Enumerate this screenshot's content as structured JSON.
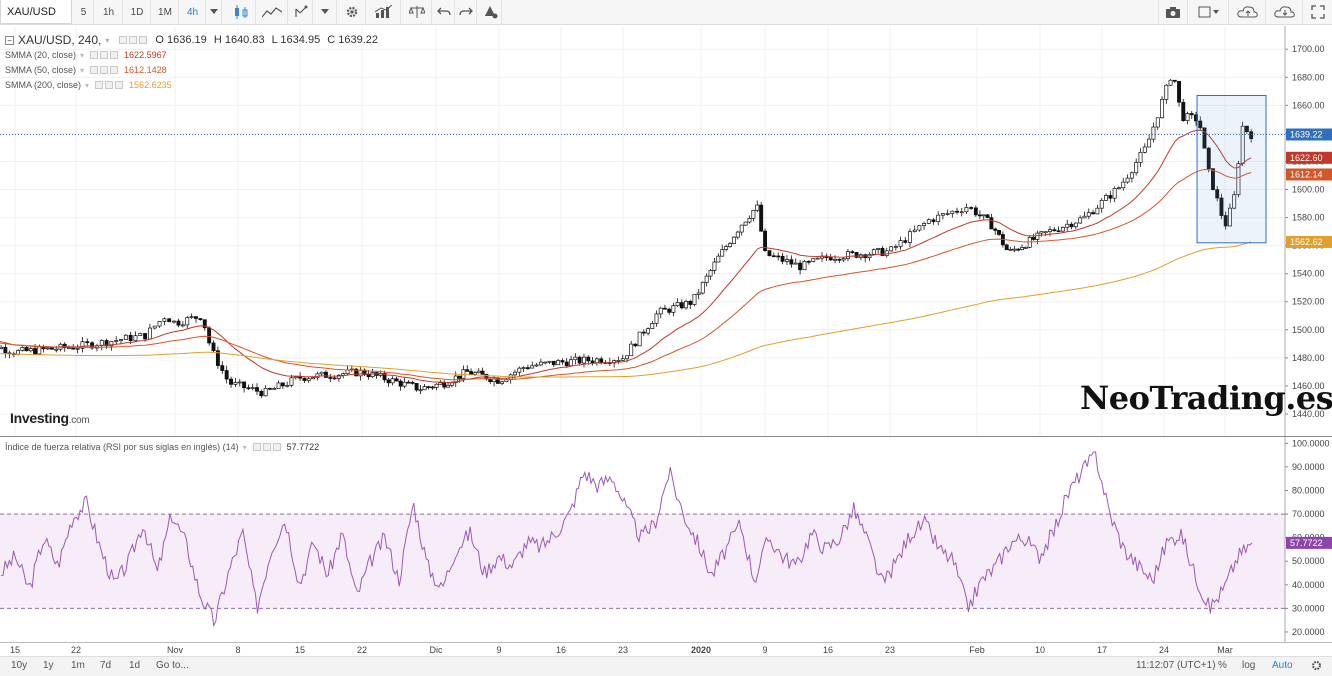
{
  "toolbar": {
    "symbol": "XAU/USD",
    "intervals": [
      "5",
      "1h",
      "1D",
      "1M",
      "4h"
    ],
    "active_interval": "4h",
    "icons": [
      "candles-icon",
      "area-chart-icon",
      "draw-tools-icon",
      "dropdown-icon",
      "settings-icon",
      "indicators-icon",
      "compare-icon",
      "undo-icon",
      "redo-icon",
      "alert-icon",
      "camera-icon",
      "layout-icon",
      "cloud-save-icon",
      "cloud-load-icon",
      "fullscreen-icon"
    ]
  },
  "legend": {
    "main_title": "XAU/USD, 240,",
    "open": "O 1636.19",
    "high": "H 1640.83",
    "low": "L 1634.95",
    "close": "C 1639.22",
    "indicators": [
      {
        "label": "SMMA (20, close)",
        "value": "1622.5967",
        "color": "#c0392b"
      },
      {
        "label": "SMMA (50, close)",
        "value": "1612.1428",
        "color": "#d4572a"
      },
      {
        "label": "SMMA (200, close)",
        "value": "1562.6235",
        "color": "#e0a030"
      }
    ],
    "rsi_label": "Índice de fuerza relativa (RSI por sus siglas en inglés) (14)",
    "rsi_value": "57.7722"
  },
  "watermark": "NeoTrading.es",
  "logo": {
    "main": "Investing",
    "suffix": ".com"
  },
  "price_tags": {
    "last": {
      "text": "1639.22",
      "color": "#2f6fbe"
    },
    "smma20": {
      "text": "1622.60",
      "color": "#c0392b"
    },
    "smma50": {
      "text": "1612.14",
      "color": "#d4572a"
    },
    "smma200": {
      "text": "1562.62",
      "color": "#e0a030"
    },
    "rsi": {
      "text": "57.7722",
      "color": "#8e44ad"
    }
  },
  "time_labels": [
    "15",
    "22",
    "Nov",
    "8",
    "15",
    "22",
    "Dic",
    "9",
    "16",
    "23",
    "2020",
    "9",
    "16",
    "23",
    "Feb",
    "10",
    "17",
    "24",
    "Mar"
  ],
  "bottom_bar": {
    "ranges": [
      "10y",
      "1y",
      "1m",
      "7d",
      "1d",
      "Go to..."
    ],
    "time": "11:12:07 (UTC+1)",
    "percent": "%",
    "log": "log",
    "auto": "Auto"
  },
  "chart_data": [
    {
      "type": "candlestick",
      "title": "XAU/USD, 240",
      "y_axis": {
        "ticks": [
          "1700.00",
          "1680.00",
          "1660.00",
          "1640.00",
          "1620.00",
          "1600.00",
          "1580.00",
          "1560.00",
          "1540.00",
          "1520.00",
          "1500.00",
          "1480.00",
          "1460.00",
          "1440.00"
        ],
        "range": [
          1430,
          1708
        ]
      },
      "x_ticks": [
        "15",
        "22",
        "Nov",
        "8",
        "15",
        "22",
        "Dic",
        "9",
        "16",
        "23",
        "2020",
        "9",
        "16",
        "23",
        "Feb",
        "10",
        "17",
        "24",
        "Mar"
      ],
      "close_path": [
        {
          "x": "Oct 10",
          "y": 1494
        },
        {
          "x": "Oct 15",
          "y": 1484
        },
        {
          "x": "Oct 22",
          "y": 1488
        },
        {
          "x": "Oct 29",
          "y": 1496
        },
        {
          "x": "Oct 31",
          "y": 1510
        },
        {
          "x": "Nov 1",
          "y": 1505
        },
        {
          "x": "Nov 4",
          "y": 1510
        },
        {
          "x": "Nov 5",
          "y": 1486
        },
        {
          "x": "Nov 7",
          "y": 1462
        },
        {
          "x": "Nov 11",
          "y": 1455
        },
        {
          "x": "Nov 15",
          "y": 1466
        },
        {
          "x": "Nov 22",
          "y": 1470
        },
        {
          "x": "Nov 29",
          "y": 1458
        },
        {
          "x": "Dec 2",
          "y": 1462
        },
        {
          "x": "Dec 5",
          "y": 1470
        },
        {
          "x": "Dec 9",
          "y": 1464
        },
        {
          "x": "Dec 12",
          "y": 1474
        },
        {
          "x": "Dec 16",
          "y": 1477
        },
        {
          "x": "Dec 23",
          "y": 1480
        },
        {
          "x": "Dec 27",
          "y": 1512
        },
        {
          "x": "Dec 31",
          "y": 1520
        },
        {
          "x": "Jan 3",
          "y": 1550
        },
        {
          "x": "Jan 6",
          "y": 1575
        },
        {
          "x": "Jan 8",
          "y": 1588
        },
        {
          "x": "Jan 9",
          "y": 1554
        },
        {
          "x": "Jan 13",
          "y": 1545
        },
        {
          "x": "Jan 16",
          "y": 1552
        },
        {
          "x": "Jan 23",
          "y": 1556
        },
        {
          "x": "Jan 27",
          "y": 1578
        },
        {
          "x": "Jan 31",
          "y": 1588
        },
        {
          "x": "Feb 3",
          "y": 1574
        },
        {
          "x": "Feb 5",
          "y": 1555
        },
        {
          "x": "Feb 10",
          "y": 1570
        },
        {
          "x": "Feb 14",
          "y": 1580
        },
        {
          "x": "Feb 18",
          "y": 1602
        },
        {
          "x": "Feb 21",
          "y": 1630
        },
        {
          "x": "Feb 24",
          "y": 1685
        },
        {
          "x": "Feb 25",
          "y": 1652
        },
        {
          "x": "Feb 27",
          "y": 1650
        },
        {
          "x": "Feb 28",
          "y": 1615
        },
        {
          "x": "Mar 1",
          "y": 1574
        },
        {
          "x": "Mar 2",
          "y": 1592
        },
        {
          "x": "Mar 3",
          "y": 1645
        },
        {
          "x": "Mar 4",
          "y": 1639.22
        }
      ],
      "series": [
        {
          "name": "SMMA (20, close)",
          "last": 1622.5967
        },
        {
          "name": "SMMA (50, close)",
          "last": 1612.1428
        },
        {
          "name": "SMMA (200, close)",
          "last": 1562.6235
        }
      ],
      "last_price": 1639.22
    },
    {
      "type": "line",
      "title": "Índice de fuerza relativa (RSI por sus siglas en inglés) (14)",
      "y_axis": {
        "ticks": [
          "100.0000",
          "90.0000",
          "80.0000",
          "70.0000",
          "60.0000",
          "50.0000",
          "40.0000",
          "30.0000",
          "20.0000"
        ],
        "range": [
          17,
          101
        ]
      },
      "bands": [
        30,
        70
      ],
      "values": [
        45,
        52,
        38,
        60,
        48,
        68,
        75,
        55,
        40,
        50,
        66,
        45,
        70,
        58,
        36,
        24,
        45,
        62,
        30,
        55,
        68,
        40,
        58,
        44,
        62,
        35,
        50,
        60,
        42,
        75,
        48,
        38,
        55,
        62,
        45,
        52,
        48,
        58,
        56,
        62,
        70,
        88,
        82,
        86,
        72,
        60,
        66,
        88,
        70,
        58,
        44,
        55,
        66,
        42,
        60,
        52,
        48,
        62,
        55,
        60,
        72,
        58,
        40,
        50,
        62,
        66,
        55,
        50,
        30,
        42,
        48,
        58,
        60,
        52,
        62,
        78,
        88,
        95,
        70,
        55,
        48,
        42,
        58,
        62,
        44,
        30,
        38,
        52,
        57.7722
      ],
      "last": 57.7722
    }
  ]
}
